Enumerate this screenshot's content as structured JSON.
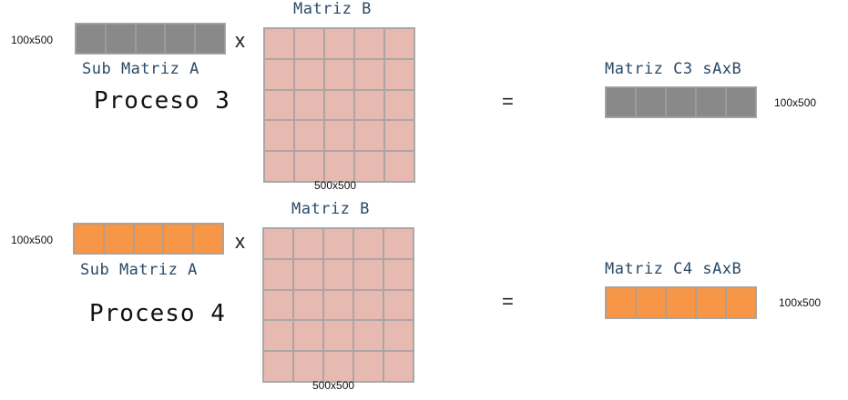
{
  "colors": {
    "sub_a_p3": "#898989",
    "sub_a_p4": "#f79646",
    "matrix_b": "#e6b9b1",
    "grid_line": "#a8a8a8"
  },
  "blocks": [
    {
      "process": "Proceso 3",
      "sub_a": {
        "label": "Sub Matriz A",
        "size": "100x500",
        "rows": 1,
        "cols": 5,
        "color": "#898989"
      },
      "times": "x",
      "matrix_b": {
        "label": "Matriz B",
        "size": "500x500",
        "rows": 5,
        "cols": 5
      },
      "equals": "=",
      "result": {
        "label": "Matriz C3 sAxB",
        "size": "100x500",
        "rows": 1,
        "cols": 5,
        "color": "#898989"
      }
    },
    {
      "process": "Proceso 4",
      "sub_a": {
        "label": "Sub Matriz A",
        "size": "100x500",
        "rows": 1,
        "cols": 5,
        "color": "#f79646"
      },
      "times": "x",
      "matrix_b": {
        "label": "Matriz B",
        "size": "500x500",
        "rows": 5,
        "cols": 5
      },
      "equals": "=",
      "result": {
        "label": "Matriz C4 sAxB",
        "size": "100x500",
        "rows": 1,
        "cols": 5,
        "color": "#f79646"
      }
    }
  ]
}
